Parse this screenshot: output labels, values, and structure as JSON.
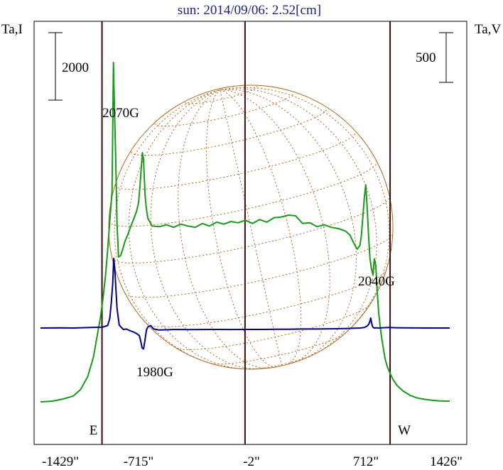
{
  "chart_data": {
    "type": "line",
    "title": "sun: 2014/09/06: 2.52[cm]",
    "ylabel_left": "Ta,I",
    "ylabel_right": "Ta,V",
    "x_ticks": [
      "-1429\"",
      "-715\"",
      "-2\"",
      "712\"",
      "1426\""
    ],
    "x_tick_values": [
      -1429,
      -715,
      -2,
      712,
      1426
    ],
    "xlim": [
      -1429,
      1426
    ],
    "limb_markers": [
      {
        "label": "E",
        "x": -1000
      },
      {
        "label": "W",
        "x": 1010
      }
    ],
    "center_line_x": -2,
    "scale_bars": {
      "left": "2000",
      "right": "500"
    },
    "annotations": [
      {
        "text": "2070G",
        "x": -920
      },
      {
        "text": "1980G",
        "x": -680
      },
      {
        "text": "2040G",
        "x": 880
      }
    ],
    "series": [
      {
        "name": "Ta,I",
        "color": "#1a9a1a",
        "x": [
          -1429,
          -1350,
          -1280,
          -1200,
          -1150,
          -1100,
          -1060,
          -1030,
          -1010,
          -1000,
          -990,
          -975,
          -960,
          -945,
          -930,
          -920,
          -912,
          -905,
          -895,
          -885,
          -870,
          -855,
          -840,
          -820,
          -800,
          -780,
          -760,
          -745,
          -735,
          -726,
          -718,
          -710,
          -700,
          -690,
          -680,
          -650,
          -600,
          -550,
          -500,
          -450,
          -400,
          -350,
          -300,
          -250,
          -200,
          -150,
          -100,
          -50,
          0,
          50,
          100,
          150,
          200,
          250,
          300,
          350,
          400,
          450,
          500,
          550,
          600,
          650,
          700,
          730,
          760,
          780,
          800,
          810,
          820,
          830,
          840,
          850,
          860,
          870,
          880,
          890,
          900,
          910,
          920,
          930,
          940,
          950,
          960,
          975,
          990,
          1010,
          1030,
          1060,
          1100,
          1150,
          1200,
          1250,
          1300,
          1350,
          1426
        ],
        "y": [
          -1070,
          -1060,
          -1030,
          -980,
          -880,
          -680,
          -380,
          0,
          250,
          420,
          600,
          900,
          1300,
          1750,
          2200,
          4200,
          3400,
          2800,
          1700,
          1180,
          1200,
          1300,
          1420,
          1530,
          1650,
          1760,
          1880,
          2020,
          2280,
          2560,
          2800,
          2680,
          2150,
          1920,
          1780,
          1660,
          1650,
          1680,
          1640,
          1690,
          1660,
          1640,
          1700,
          1660,
          1720,
          1690,
          1730,
          1710,
          1750,
          1700,
          1760,
          1720,
          1790,
          1800,
          1830,
          1820,
          1700,
          1710,
          1650,
          1680,
          1640,
          1620,
          1580,
          1520,
          1380,
          1300,
          1360,
          1520,
          1800,
          2100,
          2300,
          1950,
          1500,
          1150,
          1000,
          900,
          1150,
          1050,
          650,
          330,
          120,
          -60,
          -200,
          -400,
          -520,
          -630,
          -720,
          -820,
          -900,
          -970,
          -1010,
          -1030,
          -1045,
          -1055,
          -1060
        ]
      },
      {
        "name": "Ta,V",
        "color": "#00008b",
        "x": [
          -1429,
          -1300,
          -1200,
          -1100,
          -1000,
          -960,
          -945,
          -935,
          -925,
          -918,
          -912,
          -905,
          -895,
          -880,
          -865,
          -850,
          -830,
          -800,
          -780,
          -760,
          -740,
          -730,
          -720,
          -710,
          -700,
          -690,
          -680,
          -660,
          -640,
          -600,
          -550,
          -500,
          -450,
          -400,
          -300,
          -200,
          -100,
          0,
          100,
          200,
          300,
          400,
          500,
          600,
          700,
          750,
          800,
          830,
          850,
          860,
          870,
          875,
          880,
          885,
          890,
          900,
          910,
          930,
          960,
          1000,
          1050,
          1100,
          1200,
          1300,
          1426
        ],
        "y": [
          0,
          2,
          0,
          4,
          8,
          25,
          100,
          260,
          450,
          700,
          620,
          450,
          200,
          30,
          5,
          -15,
          -10,
          -30,
          -40,
          -55,
          -75,
          -130,
          -200,
          -210,
          -120,
          -20,
          10,
          25,
          -10,
          -20,
          -18,
          -15,
          -15,
          -16,
          -15,
          -14,
          -15,
          -14,
          -14,
          -13,
          -12,
          -10,
          -10,
          -8,
          -5,
          -3,
          0,
          5,
          20,
          35,
          70,
          100,
          60,
          25,
          8,
          0,
          2,
          0,
          3,
          5,
          3,
          2,
          1,
          0,
          0
        ]
      }
    ]
  }
}
